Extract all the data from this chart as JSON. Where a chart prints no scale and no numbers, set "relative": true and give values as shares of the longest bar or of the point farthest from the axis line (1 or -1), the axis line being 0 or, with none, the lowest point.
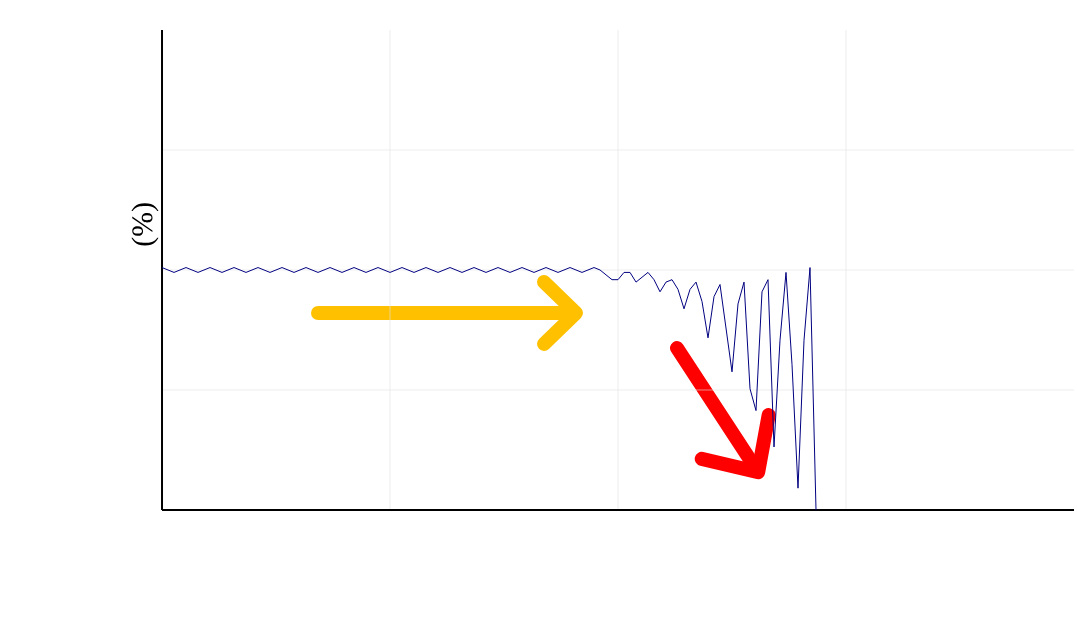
{
  "chart_data": {
    "type": "line",
    "relative": true,
    "ylabel": "(%)",
    "color": "#000080",
    "grid": true,
    "categories": [
      null,
      null,
      null,
      null,
      null,
      null,
      null,
      null,
      null,
      null,
      null,
      null,
      null,
      null,
      null,
      null,
      null,
      null,
      null,
      null,
      null,
      null,
      null,
      null,
      null,
      null,
      null,
      null,
      null,
      null,
      null,
      null,
      null,
      null,
      null,
      null,
      null,
      null,
      null,
      null,
      null,
      null,
      null,
      null,
      null,
      null,
      null,
      null,
      null,
      null,
      null,
      null,
      null,
      null,
      null,
      null,
      null,
      null,
      null,
      null,
      null,
      null,
      null,
      null,
      null,
      null,
      null,
      null,
      null,
      null,
      null,
      null,
      null,
      null,
      null,
      null,
      null,
      null,
      null,
      null,
      null,
      null,
      null,
      null,
      null,
      null,
      null,
      null,
      null,
      null,
      null,
      null,
      null,
      null,
      null,
      null,
      null,
      null,
      null,
      null,
      null,
      null,
      null,
      null,
      null,
      null,
      null,
      null,
      null,
      null,
      null,
      null,
      null,
      null,
      null,
      null,
      null,
      null,
      null,
      null,
      null,
      null,
      null,
      null,
      null,
      null,
      null,
      null,
      null,
      null,
      null,
      null,
      null,
      null,
      null,
      null,
      null,
      null,
      null,
      null,
      null,
      null,
      null,
      null,
      null,
      null,
      null,
      null,
      null,
      null,
      null,
      null,
      null
    ],
    "values": [
      1.0,
      0.99,
      0.98,
      0.99,
      1.0,
      0.99,
      0.98,
      0.99,
      1.0,
      0.99,
      0.98,
      0.99,
      1.0,
      0.99,
      0.98,
      0.99,
      1.0,
      0.99,
      0.98,
      0.99,
      1.0,
      0.99,
      0.98,
      0.99,
      1.0,
      0.99,
      0.98,
      0.99,
      1.0,
      0.99,
      0.98,
      0.99,
      1.0,
      0.99,
      0.98,
      0.99,
      1.0,
      0.99,
      0.98,
      0.99,
      1.0,
      0.99,
      0.98,
      0.99,
      1.0,
      0.99,
      0.98,
      0.99,
      1.0,
      0.99,
      0.98,
      0.99,
      1.0,
      0.99,
      0.98,
      0.99,
      1.0,
      0.99,
      0.98,
      0.99,
      1.0,
      0.99,
      0.98,
      0.99,
      1.0,
      0.99,
      0.98,
      0.99,
      1.0,
      0.99,
      0.98,
      0.99,
      1.0,
      0.99,
      0.97,
      0.95,
      0.95,
      0.98,
      0.98,
      0.94,
      0.96,
      0.98,
      0.95,
      0.9,
      0.94,
      0.95,
      0.91,
      0.83,
      0.91,
      0.94,
      0.86,
      0.71,
      0.88,
      0.93,
      0.75,
      0.57,
      0.85,
      0.94,
      0.5,
      0.41,
      0.9,
      0.95,
      0.26,
      0.7,
      0.98,
      0.6,
      0.09,
      0.7,
      1.0,
      0.0,
      null,
      null,
      null,
      null,
      null,
      null,
      null,
      null,
      null,
      null,
      null,
      null,
      null,
      null,
      null,
      null,
      null,
      null,
      null,
      null,
      null,
      null,
      null,
      null,
      null,
      null,
      null,
      null,
      null,
      null,
      null,
      null,
      null,
      null,
      null,
      null,
      null,
      null,
      null,
      null,
      null,
      null,
      null
    ]
  }
}
